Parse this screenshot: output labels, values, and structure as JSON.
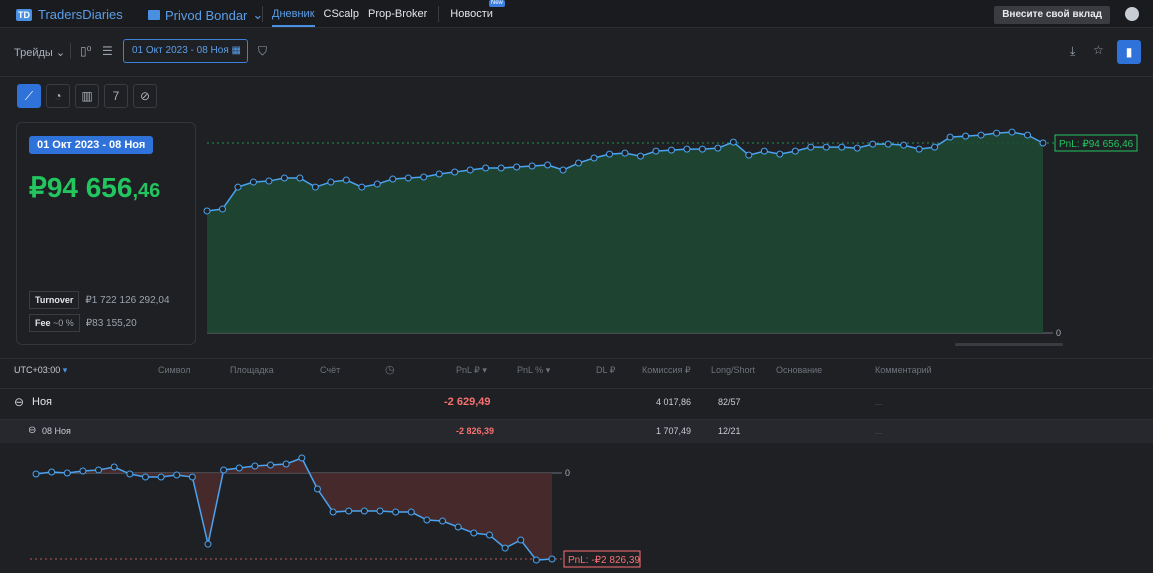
{
  "topbar": {
    "brand": "TradersDiaries",
    "account": "Privod Bondar",
    "nav": [
      "Дневник",
      "CScalp",
      "Prop-Broker",
      "Новости"
    ],
    "new_badge": "New",
    "deposit_button": "Внесите свой вклад"
  },
  "toolbar": {
    "trades": "Трейды",
    "date_range": "01 Окт 2023 - 08 Ноя"
  },
  "chart_buttons": [
    "line-chart-icon",
    "pie-chart-icon",
    "bar-chart-icon",
    "calendar-icon",
    "chart-ban-icon"
  ],
  "card": {
    "period": "01 Окт 2023 - 08 Ноя",
    "pnl_main": "₽94 656",
    "pnl_cents": ",46",
    "turnover_label": "Turnover",
    "turnover": "₽1 722 126 292,04",
    "fee_label": "Fee",
    "fee_pct": "~0 %",
    "fee": "₽83 155,20"
  },
  "colors": {
    "accent": "#2f72d9",
    "positive": "#22c55e",
    "negative": "#f87171",
    "line": "#4aa3f0"
  },
  "table": {
    "headers": [
      "UTC+03:00",
      "Символ",
      "Площадка",
      "Счёт",
      "",
      "PnL ₽",
      "PnL %",
      "DL ₽",
      "Комиссия ₽",
      "Long/Short",
      "Основание",
      "Комментарий"
    ],
    "rows": [
      {
        "label": "Ноя",
        "pnl": "-2 629,49",
        "fee": "4 017,86",
        "ls": "82/57",
        "comment": "..."
      },
      {
        "label": "08 Ноя",
        "pnl": "-2 826,39",
        "fee": "1 707,49",
        "ls": "12/21",
        "comment": "..."
      }
    ]
  },
  "chart_data": [
    {
      "type": "area",
      "label": "PnL: ₽94 656,46",
      "zero_label": "0",
      "y_ref": 94656.46,
      "values": [
        60800,
        61750,
        72700,
        75200,
        75700,
        77200,
        77200,
        72700,
        75200,
        76200,
        72700,
        74200,
        76700,
        77200,
        77700,
        79200,
        80200,
        81200,
        82200,
        82200,
        82700,
        83200,
        83700,
        81200,
        84700,
        87200,
        89100,
        89600,
        88100,
        90600,
        91100,
        91600,
        91600,
        92100,
        95100,
        88600,
        90600,
        89100,
        90600,
        92600,
        92600,
        92600,
        92100,
        94100,
        94100,
        93600,
        91600,
        92600,
        97600,
        98100,
        98600,
        99600,
        100100,
        98600,
        94656.46
      ]
    },
    {
      "type": "area",
      "label": "PnL: -₽2 826,39",
      "zero_label": "0",
      "y_ref": -2826.39,
      "values": [
        -33,
        33,
        0,
        66,
        99,
        197,
        -33,
        -132,
        -132,
        -66,
        -132,
        -2336,
        99,
        164,
        230,
        263,
        296,
        493,
        -526,
        -1283,
        -1250,
        -1250,
        -1250,
        -1283,
        -1283,
        -1546,
        -1579,
        -1776,
        -1973,
        -2039,
        -2467,
        -2204,
        -2861,
        -2826.39
      ]
    }
  ]
}
